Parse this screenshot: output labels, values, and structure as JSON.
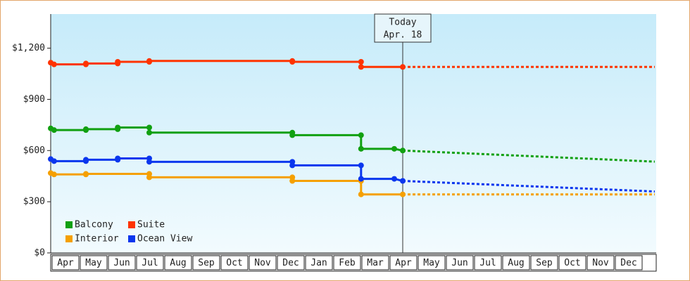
{
  "chart_data": {
    "type": "step-line",
    "xlim": [
      0,
      21.5
    ],
    "ylim": [
      0,
      1400
    ],
    "yticks": [
      {
        "value": 0,
        "label": "$0"
      },
      {
        "value": 300,
        "label": "$300"
      },
      {
        "value": 600,
        "label": "$600"
      },
      {
        "value": 900,
        "label": "$900"
      },
      {
        "value": 1200,
        "label": "$1,200"
      }
    ],
    "xticks": [
      {
        "value": 0,
        "label": "Apr"
      },
      {
        "value": 1,
        "label": "May"
      },
      {
        "value": 2,
        "label": "Jun"
      },
      {
        "value": 3,
        "label": "Jul"
      },
      {
        "value": 4,
        "label": "Aug"
      },
      {
        "value": 5,
        "label": "Sep"
      },
      {
        "value": 6,
        "label": "Oct"
      },
      {
        "value": 7,
        "label": "Nov"
      },
      {
        "value": 8,
        "label": "Dec"
      },
      {
        "value": 9,
        "label": "Jan"
      },
      {
        "value": 10,
        "label": "Feb"
      },
      {
        "value": 11,
        "label": "Mar"
      },
      {
        "value": 12,
        "label": "Apr"
      },
      {
        "value": 13,
        "label": "May"
      },
      {
        "value": 14,
        "label": "Jun"
      },
      {
        "value": 15,
        "label": "Jul"
      },
      {
        "value": 16,
        "label": "Aug"
      },
      {
        "value": 17,
        "label": "Sep"
      },
      {
        "value": 18,
        "label": "Oct"
      },
      {
        "value": 19,
        "label": "Nov"
      },
      {
        "value": 20,
        "label": "Dec"
      }
    ],
    "legend": "lower left",
    "annotation": {
      "x": 12.5,
      "lines": [
        "Today",
        "Apr. 18"
      ]
    },
    "series": [
      {
        "name": "Balcony",
        "color": "#11a011",
        "x": [
          0,
          0.12,
          1.25,
          1.25,
          2.38,
          2.38,
          3.5,
          3.5,
          8.58,
          8.58,
          11.02,
          11.02,
          12.2,
          12.5
        ],
        "values": [
          730,
          720,
          720,
          725,
          725,
          735,
          735,
          705,
          705,
          690,
          690,
          610,
          610,
          600
        ],
        "forecast_x": [
          12.5,
          21.45
        ],
        "forecast_values": [
          600,
          535
        ]
      },
      {
        "name": "Suite",
        "color": "#ff3300",
        "x": [
          0,
          0.12,
          1.25,
          1.25,
          2.38,
          2.38,
          3.5,
          3.5,
          8.58,
          8.58,
          11.02,
          11.02,
          12.5
        ],
        "values": [
          1115,
          1105,
          1105,
          1110,
          1110,
          1120,
          1120,
          1125,
          1125,
          1120,
          1120,
          1090,
          1090
        ],
        "forecast_x": [
          12.5,
          21.45
        ],
        "forecast_values": [
          1090,
          1090
        ]
      },
      {
        "name": "Interior",
        "color": "#f5a000",
        "x": [
          0,
          0.12,
          1.25,
          1.25,
          3.5,
          3.5,
          8.58,
          8.58,
          11.02,
          11.02,
          12.5
        ],
        "values": [
          468,
          460,
          460,
          463,
          463,
          443,
          443,
          422,
          422,
          343,
          343
        ],
        "forecast_x": [
          12.5,
          21.45
        ],
        "forecast_values": [
          343,
          343
        ]
      },
      {
        "name": "Ocean View",
        "color": "#0a36ee",
        "x": [
          0,
          0.12,
          1.25,
          1.25,
          2.38,
          2.38,
          3.5,
          3.5,
          8.58,
          8.58,
          11.02,
          11.02,
          12.2,
          12.5
        ],
        "values": [
          550,
          538,
          538,
          546,
          546,
          554,
          554,
          534,
          534,
          513,
          513,
          434,
          434,
          422
        ],
        "forecast_x": [
          12.5,
          21.45
        ],
        "forecast_values": [
          422,
          360
        ]
      }
    ]
  }
}
